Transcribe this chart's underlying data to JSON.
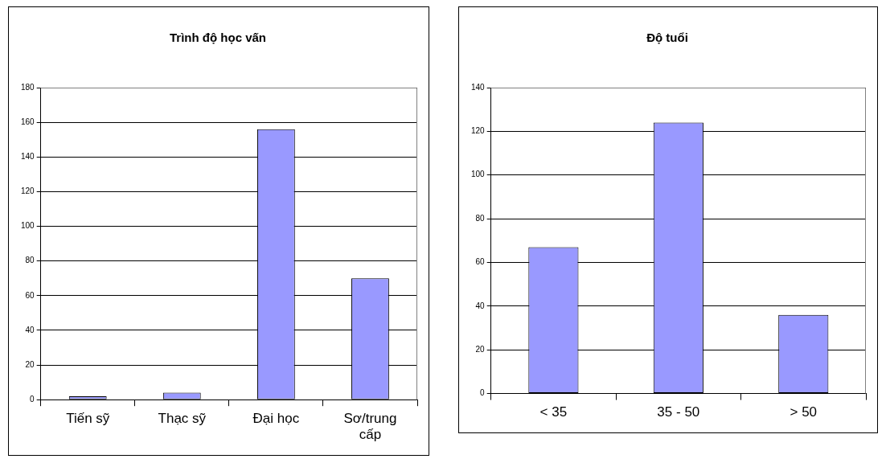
{
  "chart_data": [
    {
      "type": "bar",
      "title": "Trình độ học vấn",
      "categories": [
        "Tiến sỹ",
        "Thạc sỹ",
        "Đại học",
        "Sơ/trung cấp"
      ],
      "values": [
        2,
        4,
        156,
        70
      ],
      "color": "#9999ff",
      "ylim": [
        0,
        180
      ],
      "yticks": [
        0,
        20,
        40,
        60,
        80,
        100,
        120,
        140,
        160,
        180
      ],
      "grid": "y",
      "legend": false
    },
    {
      "type": "bar",
      "title": "Độ tuổi",
      "categories": [
        "< 35",
        "35 - 50",
        "> 50"
      ],
      "values": [
        67,
        124,
        36
      ],
      "color": "#9999ff",
      "ylim": [
        0,
        140
      ],
      "yticks": [
        0,
        20,
        40,
        60,
        80,
        100,
        120,
        140
      ],
      "grid": "y",
      "legend": false
    }
  ]
}
